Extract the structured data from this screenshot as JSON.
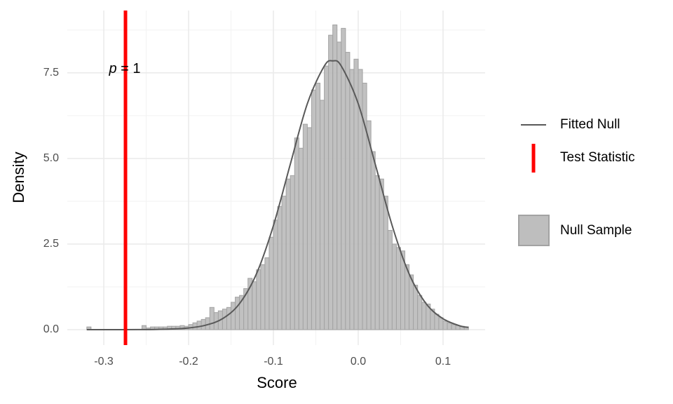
{
  "chart_data": {
    "type": "histogram",
    "x_label": "Score",
    "y_label": "Density",
    "bins": [
      -0.32,
      -0.315,
      -0.31,
      -0.305,
      -0.3,
      -0.295,
      -0.29,
      -0.285,
      -0.28,
      -0.275,
      -0.27,
      -0.265,
      -0.26,
      -0.255,
      -0.25,
      -0.245,
      -0.24,
      -0.235,
      -0.23,
      -0.225,
      -0.22,
      -0.215,
      -0.21,
      -0.205,
      -0.2,
      -0.195,
      -0.19,
      -0.185,
      -0.18,
      -0.175,
      -0.17,
      -0.165,
      -0.16,
      -0.155,
      -0.15,
      -0.145,
      -0.14,
      -0.135,
      -0.13,
      -0.125,
      -0.12,
      -0.115,
      -0.11,
      -0.105,
      -0.1,
      -0.095,
      -0.09,
      -0.085,
      -0.08,
      -0.075,
      -0.07,
      -0.065,
      -0.06,
      -0.055,
      -0.05,
      -0.045,
      -0.04,
      -0.035,
      -0.03,
      -0.025,
      -0.02,
      -0.015,
      -0.01,
      -0.005,
      0,
      0.005,
      0.01,
      0.015,
      0.02,
      0.025,
      0.03,
      0.035,
      0.04,
      0.045,
      0.05,
      0.055,
      0.06,
      0.065,
      0.07,
      0.075,
      0.08,
      0.085,
      0.09,
      0.095,
      0.1,
      0.105,
      0.11,
      0.115,
      0.12,
      0.125,
      0.13
    ],
    "values": [
      0.08,
      0,
      0,
      0,
      0,
      0,
      0,
      0,
      0,
      0,
      0,
      0,
      0,
      0.12,
      0.05,
      0.08,
      0.08,
      0.08,
      0.08,
      0.1,
      0.1,
      0.1,
      0.12,
      0.1,
      0.15,
      0.2,
      0.25,
      0.3,
      0.35,
      0.65,
      0.5,
      0.55,
      0.6,
      0.65,
      0.8,
      0.95,
      1.0,
      1.2,
      1.5,
      1.4,
      1.75,
      1.9,
      2.1,
      2.7,
      3.2,
      3.6,
      3.9,
      4.4,
      4.5,
      5.6,
      5.3,
      6.0,
      5.9,
      7.0,
      7.2,
      6.7,
      7.7,
      8.6,
      8.9,
      8.4,
      8.8,
      8.1,
      7.6,
      7.9,
      7.6,
      7.2,
      6.1,
      5.2,
      4.5,
      4.4,
      3.9,
      2.9,
      2.5,
      2.4,
      2.3,
      1.9,
      1.6,
      1.3,
      1.0,
      0.8,
      0.75,
      0.6,
      0.45,
      0.35,
      0.25,
      0.2,
      0.15,
      0.12,
      0.1,
      0.08
    ],
    "name": "Null Sample",
    "color": "#bebebe",
    "edge_color": "#a3a3a3",
    "lines": [
      {
        "name": "Fitted Null",
        "color": "#595959",
        "x": [
          -0.32,
          -0.3,
          -0.28,
          -0.26,
          -0.24,
          -0.22,
          -0.2,
          -0.18,
          -0.16,
          -0.14,
          -0.12,
          -0.1,
          -0.08,
          -0.06,
          -0.04,
          -0.03,
          -0.02,
          0.0,
          0.02,
          0.04,
          0.06,
          0.08,
          0.1,
          0.12,
          0.13
        ],
        "values": [
          0,
          0,
          0,
          0.002,
          0.006,
          0.02,
          0.05,
          0.13,
          0.32,
          0.76,
          1.63,
          3.04,
          4.84,
          6.6,
          7.7,
          7.85,
          7.7,
          6.6,
          4.84,
          3.04,
          1.63,
          0.76,
          0.32,
          0.11,
          0.07
        ]
      }
    ],
    "vlines": [
      {
        "name": "Test Statistic",
        "color": "#ff0000",
        "x": -0.2744
      }
    ],
    "annotation": [
      "p",
      " = 1"
    ],
    "xlim": [
      -0.343,
      0.1496
    ],
    "ylim": [
      -0.45,
      9.32
    ],
    "xticks": [
      -0.3,
      -0.2,
      -0.1,
      {
        "value": 0,
        "label": "0.0"
      },
      0.1
    ],
    "yticks": [
      {
        "value": 0,
        "label": "0.0"
      },
      2.5,
      {
        "value": 5,
        "label": "5.0"
      },
      7.5
    ],
    "x_minor_grid": [
      -0.25,
      -0.15,
      -0.05,
      0.05
    ],
    "y_minor_grid": [
      1.25,
      3.75,
      6.25,
      8.75
    ],
    "grid": true,
    "legend": "right"
  }
}
